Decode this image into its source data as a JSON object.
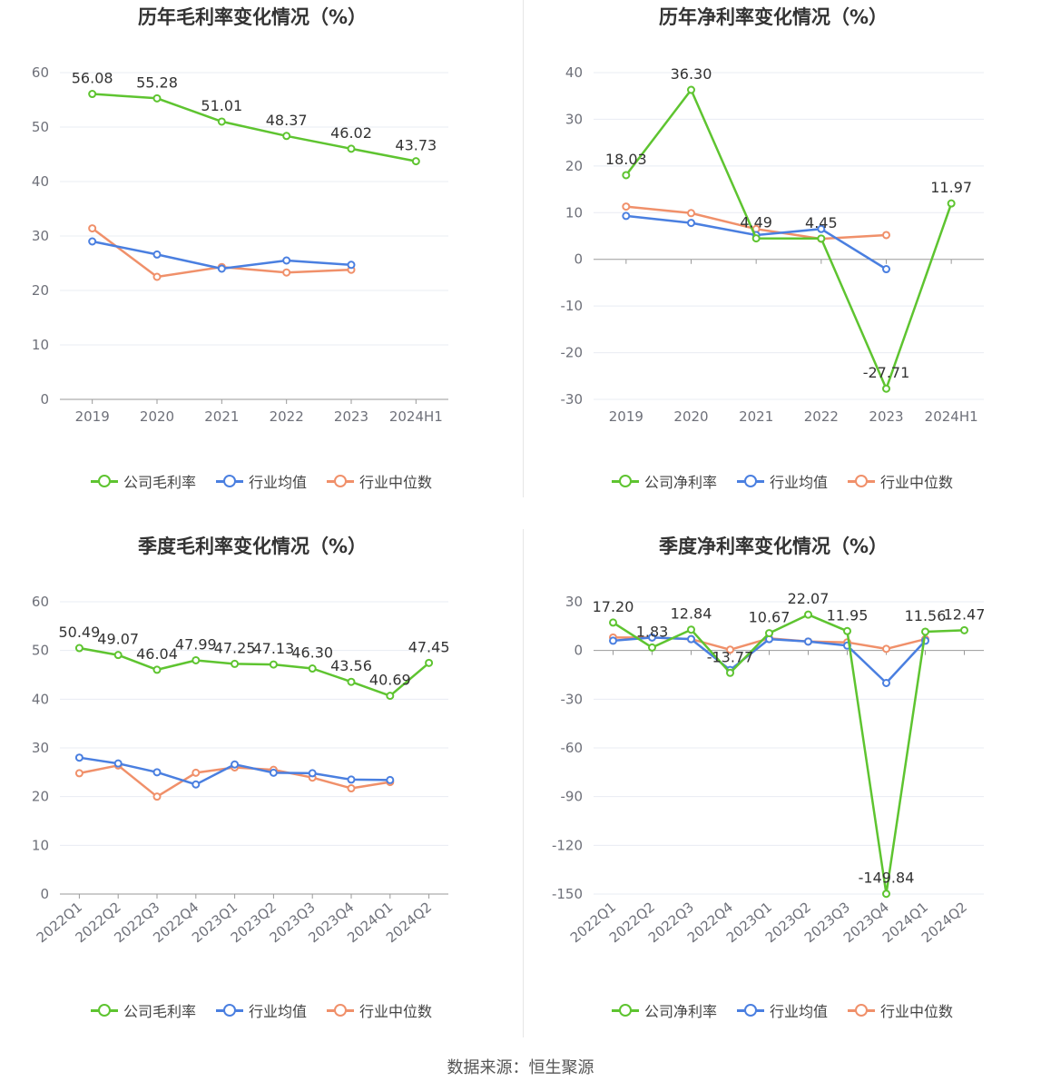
{
  "source_label": "数据来源：恒生聚源",
  "colors": {
    "company": "#5ec430",
    "industry_avg": "#4a7fe0",
    "industry_median": "#f0906a"
  },
  "chart_data": [
    {
      "type": "line",
      "title": "历年毛利率变化情况（%）",
      "categories": [
        "2019",
        "2020",
        "2021",
        "2022",
        "2023",
        "2024H1"
      ],
      "ylim": [
        0,
        60
      ],
      "yticks": [
        0,
        10,
        20,
        30,
        40,
        50,
        60
      ],
      "series": [
        {
          "name": "公司毛利率",
          "key": "company",
          "values": [
            56.08,
            55.28,
            51.01,
            48.37,
            46.02,
            43.73
          ],
          "labels": [
            "56.08",
            "55.28",
            "51.01",
            "48.37",
            "46.02",
            "43.73"
          ]
        },
        {
          "name": "行业均值",
          "key": "industry_avg",
          "values": [
            29.0,
            26.6,
            24.0,
            25.5,
            24.7,
            null
          ]
        },
        {
          "name": "行业中位数",
          "key": "industry_median",
          "values": [
            31.4,
            22.5,
            24.3,
            23.3,
            23.8,
            null
          ]
        }
      ]
    },
    {
      "type": "line",
      "title": "历年净利率变化情况（%）",
      "categories": [
        "2019",
        "2020",
        "2021",
        "2022",
        "2023",
        "2024H1"
      ],
      "ylim": [
        -30,
        40
      ],
      "yticks": [
        -30,
        -20,
        -10,
        0,
        10,
        20,
        30,
        40
      ],
      "series": [
        {
          "name": "公司净利率",
          "key": "company",
          "values": [
            18.03,
            36.3,
            4.49,
            4.45,
            -27.71,
            11.97
          ],
          "labels": [
            "18.03",
            "36.30",
            "4.49",
            "4.45",
            "-27.71",
            "11.97"
          ]
        },
        {
          "name": "行业均值",
          "key": "industry_avg",
          "values": [
            9.3,
            7.8,
            5.2,
            6.5,
            -2.1,
            null
          ]
        },
        {
          "name": "行业中位数",
          "key": "industry_median",
          "values": [
            11.3,
            9.9,
            6.5,
            4.4,
            5.2,
            null
          ]
        }
      ]
    },
    {
      "type": "line",
      "title": "季度毛利率变化情况（%）",
      "categories": [
        "2022Q1",
        "2022Q2",
        "2022Q3",
        "2022Q4",
        "2023Q1",
        "2023Q2",
        "2023Q3",
        "2023Q4",
        "2024Q1",
        "2024Q2"
      ],
      "ylim": [
        0,
        60
      ],
      "yticks": [
        0,
        10,
        20,
        30,
        40,
        50,
        60
      ],
      "series": [
        {
          "name": "公司毛利率",
          "key": "company",
          "values": [
            50.49,
            49.07,
            46.04,
            47.99,
            47.25,
            47.13,
            46.3,
            43.56,
            40.69,
            47.45
          ],
          "labels": [
            "50.49",
            "49.07",
            "46.04",
            "47.99",
            "47.25",
            "47.13",
            "46.30",
            "43.56",
            "40.69",
            "47.45"
          ]
        },
        {
          "name": "行业均值",
          "key": "industry_avg",
          "values": [
            28.0,
            26.8,
            25.0,
            22.5,
            26.6,
            24.9,
            24.8,
            23.5,
            23.4,
            null
          ]
        },
        {
          "name": "行业中位数",
          "key": "industry_median",
          "values": [
            24.8,
            26.4,
            20.0,
            24.9,
            26.0,
            25.5,
            23.9,
            21.7,
            23.0,
            null
          ]
        }
      ]
    },
    {
      "type": "line",
      "title": "季度净利率变化情况（%）",
      "categories": [
        "2022Q1",
        "2022Q2",
        "2022Q3",
        "2022Q4",
        "2023Q1",
        "2023Q2",
        "2023Q3",
        "2023Q4",
        "2024Q1",
        "2024Q2"
      ],
      "ylim": [
        -150,
        30
      ],
      "yticks": [
        -150,
        -120,
        -90,
        -60,
        -30,
        0,
        30
      ],
      "series": [
        {
          "name": "公司净利率",
          "key": "company",
          "values": [
            17.2,
            1.83,
            12.84,
            -13.77,
            10.67,
            22.07,
            11.95,
            -149.84,
            11.56,
            12.47
          ],
          "labels": [
            "17.20",
            "1.83",
            "12.84",
            "-13.77",
            "10.67",
            "22.07",
            "11.95",
            "-149.84",
            "11.56",
            "12.47"
          ]
        },
        {
          "name": "行业均值",
          "key": "industry_avg",
          "values": [
            6.0,
            8.0,
            7.0,
            -12.0,
            7.0,
            5.5,
            3.0,
            -20.0,
            6.0,
            null
          ]
        },
        {
          "name": "行业中位数",
          "key": "industry_median",
          "values": [
            8.0,
            8.0,
            7.0,
            0.5,
            7.5,
            5.5,
            5.0,
            1.0,
            7.0,
            null
          ]
        }
      ]
    }
  ]
}
